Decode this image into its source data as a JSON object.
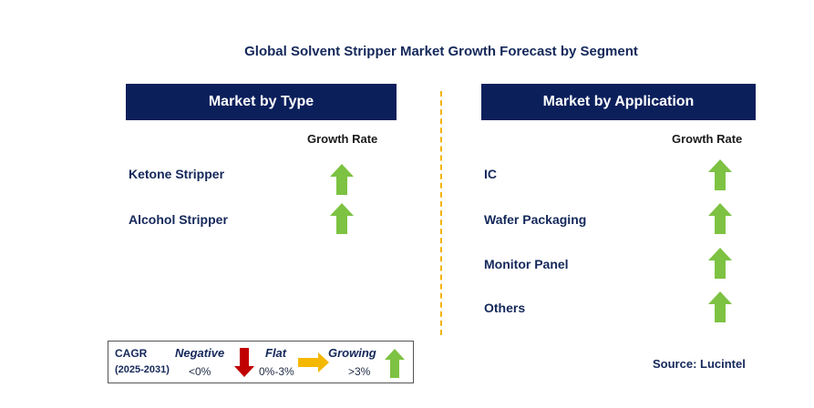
{
  "title": "Global Solvent Stripper Market Growth Forecast by Segment",
  "left_panel": {
    "header": "Market by Type",
    "growth_label": "Growth Rate",
    "rows": [
      {
        "label": "Ketone Stripper",
        "trend": "growing"
      },
      {
        "label": "Alcohol Stripper",
        "trend": "growing"
      }
    ]
  },
  "right_panel": {
    "header": "Market by Application",
    "growth_label": "Growth Rate",
    "rows": [
      {
        "label": "IC",
        "trend": "growing"
      },
      {
        "label": "Wafer Packaging",
        "trend": "growing"
      },
      {
        "label": "Monitor Panel",
        "trend": "growing"
      },
      {
        "label": "Others",
        "trend": "growing"
      }
    ]
  },
  "legend": {
    "cagr_label": "CAGR",
    "period": "(2025-2031)",
    "negative_label": "Negative",
    "negative_range": "<0%",
    "flat_label": "Flat",
    "flat_range": "0%-3%",
    "growing_label": "Growing",
    "growing_range": ">3%"
  },
  "source": "Source: Lucintel",
  "colors": {
    "header_bg": "#0b1f5b",
    "growing": "#7dc242",
    "negative": "#c00000",
    "flat": "#f5b800",
    "divider": "#f2b300"
  }
}
